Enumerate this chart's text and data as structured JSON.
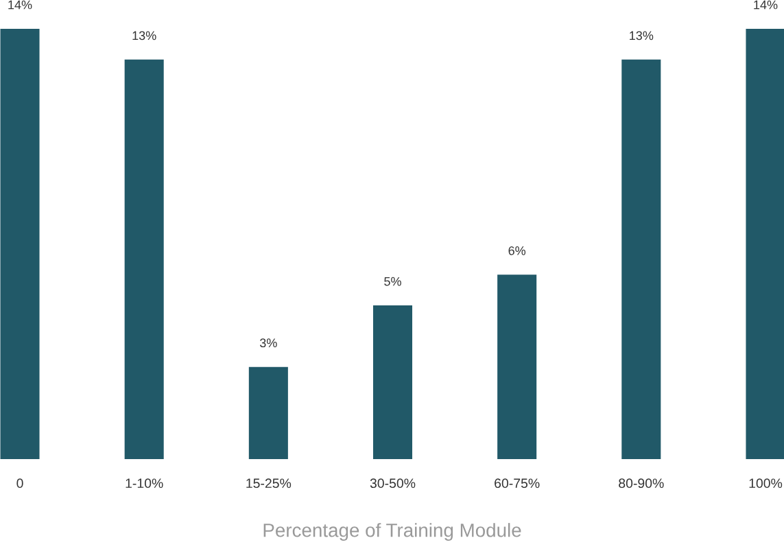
{
  "chart_data": {
    "type": "bar",
    "xlabel": "Percentage of Training Module",
    "categories": [
      "0",
      "1-10%",
      "15-25%",
      "30-50%",
      "60-75%",
      "80-90%",
      "100%"
    ],
    "values": [
      14,
      13,
      3,
      5,
      6,
      13,
      14
    ],
    "value_labels": [
      "14%",
      "13%",
      "3%",
      "5%",
      "6%",
      "13%",
      "14%"
    ],
    "color": "#215968",
    "grid": false,
    "legend": false
  }
}
